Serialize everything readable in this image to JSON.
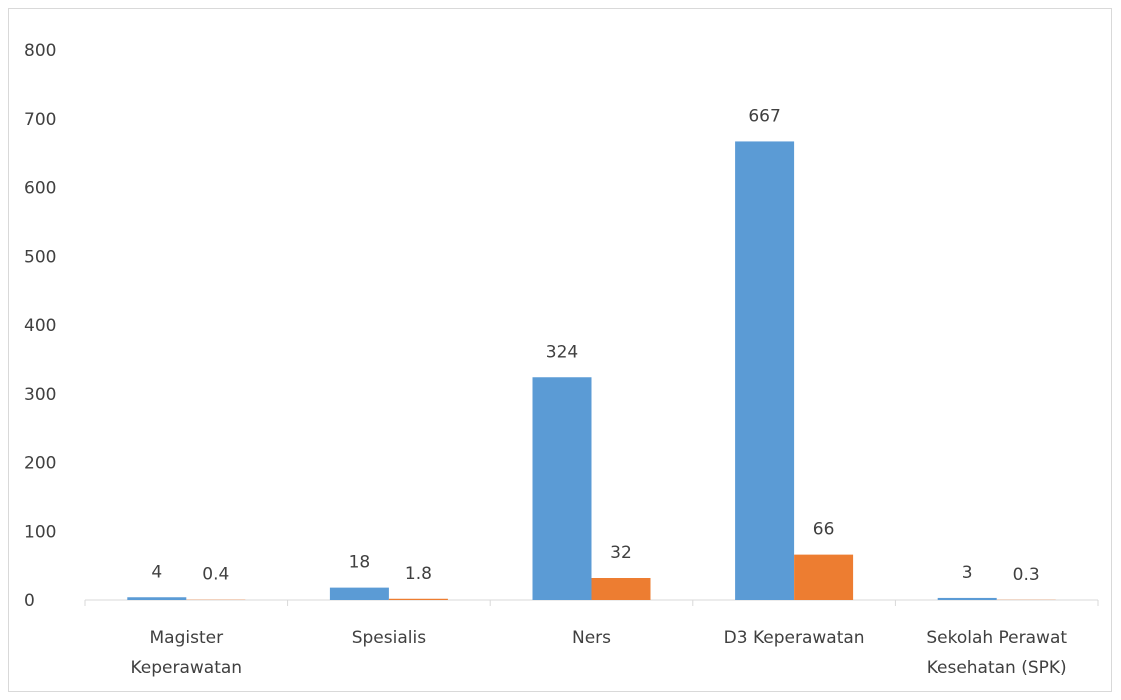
{
  "chart_data": {
    "type": "bar",
    "title": "",
    "xlabel": "",
    "ylabel": "",
    "ylim": [
      0,
      800
    ],
    "yticks": [
      0,
      100,
      200,
      300,
      400,
      500,
      600,
      700,
      800
    ],
    "grid": false,
    "legend": "none",
    "categories": [
      [
        "Magister",
        "Keperawatan"
      ],
      [
        "Spesialis"
      ],
      [
        "Ners"
      ],
      [
        "D3 Keperawatan"
      ],
      [
        "Sekolah Perawat",
        "Kesehatan (SPK)"
      ]
    ],
    "series": [
      {
        "color": "#5b9bd5",
        "values": [
          4,
          18,
          324,
          667,
          3
        ],
        "labels": [
          "4",
          "18",
          "324",
          "667",
          "3"
        ]
      },
      {
        "color": "#ed7d31",
        "values": [
          0.4,
          1.8,
          32,
          66,
          0.3
        ],
        "labels": [
          "0.4",
          "1.8",
          "32",
          "66",
          "0.3"
        ]
      }
    ]
  }
}
